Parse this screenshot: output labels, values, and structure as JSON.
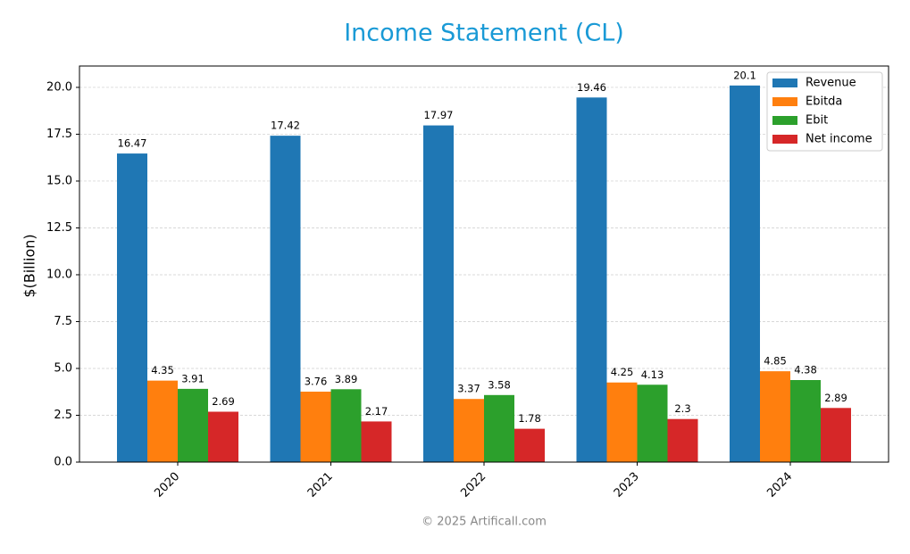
{
  "chart_data": {
    "type": "bar",
    "title": "Income Statement (CL)",
    "ylabel": "$(Billion)",
    "footer": "© 2025 Artificall.com",
    "categories": [
      "2020",
      "2021",
      "2022",
      "2023",
      "2024"
    ],
    "series": [
      {
        "name": "Revenue",
        "color": "#1f77b4",
        "values": [
          16.47,
          17.42,
          17.97,
          19.46,
          20.1
        ]
      },
      {
        "name": "Ebitda",
        "color": "#ff7f0e",
        "values": [
          4.35,
          3.76,
          3.37,
          4.25,
          4.85
        ]
      },
      {
        "name": "Ebit",
        "color": "#2ca02c",
        "values": [
          3.91,
          3.89,
          3.58,
          4.13,
          4.38
        ]
      },
      {
        "name": "Net income",
        "color": "#d62728",
        "values": [
          2.69,
          2.17,
          1.78,
          2.3,
          2.89
        ]
      }
    ],
    "ylim": [
      0,
      21.14
    ],
    "yticks": [
      {
        "value": 0,
        "label": "0.0"
      },
      2.5,
      {
        "value": 5,
        "label": "5.0"
      },
      7.5,
      {
        "value": 10,
        "label": "10.0"
      },
      12.5,
      {
        "value": 15,
        "label": "15.0"
      },
      17.5,
      {
        "value": 20,
        "label": "20.0"
      }
    ],
    "grid": true,
    "legend": "upper right"
  }
}
